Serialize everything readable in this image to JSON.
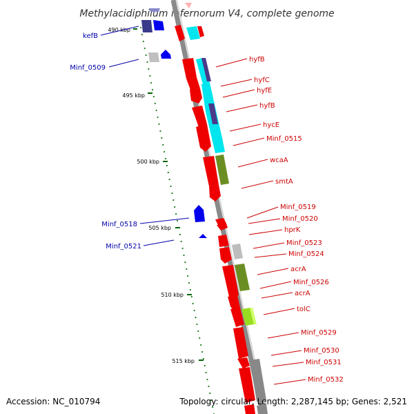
{
  "title": "Methylacidiphilum infernorum V4, complete genome",
  "accession": "Accession: NC_010794",
  "summary": "Topology: circular; Length: 2,287,145 bp; Genes: 2,521",
  "colors": {
    "backbone": "#888888",
    "forward_cds": "#ff0000",
    "cds_cyan": "#00e5ee",
    "cds_purple": "#5a4a9a",
    "cds_olive": "#6b8e23",
    "cds_lightgreen": "#99ee33",
    "cds_gray": "#bdbdbd",
    "reverse_cds": "#0000ff",
    "reverse_purple": "#2e2e8a",
    "tick": "#006400",
    "label_forward": "#cc0000",
    "label_reverse": "#0000aa"
  },
  "scale_labels": [
    "490 kbp",
    "495 kbp",
    "500 kbp",
    "505 kbp",
    "510 kbp",
    "515 kbp"
  ],
  "forward_labels": [
    "hyfB",
    "hyfC",
    "hyfE",
    "hyfB",
    "hycE",
    "Minf_0515",
    "wcaA",
    "smtA",
    "Minf_0519",
    "Minf_0520",
    "hprK",
    "Minf_0523",
    "Minf_0524",
    "acrA",
    "Minf_0526",
    "acrA",
    "tolC",
    "Minf_0529",
    "Minf_0530",
    "Minf_0531",
    "Minf_0532"
  ],
  "reverse_labels": [
    "kefB",
    "Minf_0509",
    "Minf_0518",
    "Minf_0521"
  ]
}
